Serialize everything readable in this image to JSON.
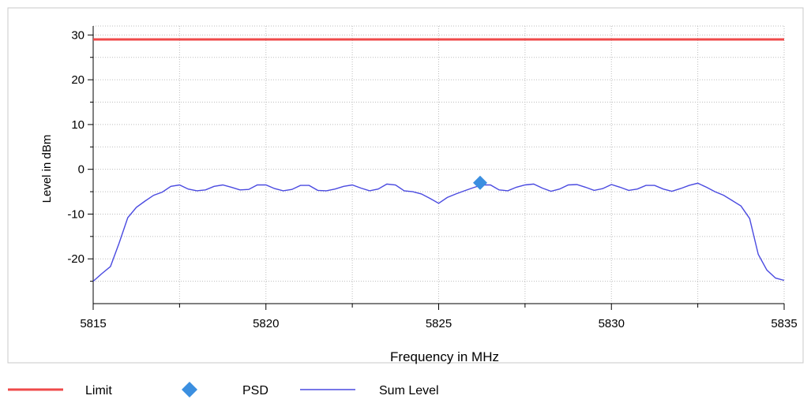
{
  "chart_data": {
    "type": "line",
    "title": "",
    "xlabel": "Frequency in MHz",
    "ylabel": "Level in dBm",
    "xlim": [
      5815,
      5835
    ],
    "ylim": [
      -30,
      32
    ],
    "x_ticks": [
      5815,
      5820,
      5825,
      5830,
      5835
    ],
    "y_ticks": [
      -20,
      -10,
      0,
      10,
      20,
      30
    ],
    "grid": true,
    "legend_position": "bottom",
    "colors": {
      "limit": "#ef4a4a",
      "psd": "#3b8fe0",
      "sum": "#4a4ae0"
    },
    "series": [
      {
        "name": "Limit",
        "kind": "line",
        "values": [
          [
            5815,
            29
          ],
          [
            5835,
            29
          ]
        ]
      },
      {
        "name": "PSD",
        "kind": "marker",
        "values": [
          [
            5826.2,
            -3.0
          ]
        ]
      },
      {
        "name": "Sum Level",
        "kind": "line",
        "values": [
          [
            5815.0,
            -25.0
          ],
          [
            5815.25,
            -23.3
          ],
          [
            5815.5,
            -21.7
          ],
          [
            5815.75,
            -16.5
          ],
          [
            5816.0,
            -10.8
          ],
          [
            5816.25,
            -8.5
          ],
          [
            5816.5,
            -7.1
          ],
          [
            5816.75,
            -5.8
          ],
          [
            5817.0,
            -5.1
          ],
          [
            5817.25,
            -3.8
          ],
          [
            5817.5,
            -3.5
          ],
          [
            5817.75,
            -4.4
          ],
          [
            5818.0,
            -4.8
          ],
          [
            5818.25,
            -4.6
          ],
          [
            5818.5,
            -3.8
          ],
          [
            5818.75,
            -3.5
          ],
          [
            5819.0,
            -4.0
          ],
          [
            5819.25,
            -4.6
          ],
          [
            5819.5,
            -4.5
          ],
          [
            5819.75,
            -3.5
          ],
          [
            5820.0,
            -3.5
          ],
          [
            5820.25,
            -4.3
          ],
          [
            5820.5,
            -4.8
          ],
          [
            5820.75,
            -4.5
          ],
          [
            5821.0,
            -3.6
          ],
          [
            5821.25,
            -3.6
          ],
          [
            5821.5,
            -4.7
          ],
          [
            5821.75,
            -4.8
          ],
          [
            5822.0,
            -4.4
          ],
          [
            5822.25,
            -3.8
          ],
          [
            5822.5,
            -3.5
          ],
          [
            5822.75,
            -4.2
          ],
          [
            5823.0,
            -4.8
          ],
          [
            5823.25,
            -4.4
          ],
          [
            5823.5,
            -3.3
          ],
          [
            5823.75,
            -3.5
          ],
          [
            5824.0,
            -4.8
          ],
          [
            5824.25,
            -5.0
          ],
          [
            5824.5,
            -5.5
          ],
          [
            5824.75,
            -6.5
          ],
          [
            5825.0,
            -7.6
          ],
          [
            5825.25,
            -6.3
          ],
          [
            5825.5,
            -5.5
          ],
          [
            5825.75,
            -4.8
          ],
          [
            5826.0,
            -4.1
          ],
          [
            5826.25,
            -3.5
          ],
          [
            5826.5,
            -3.5
          ],
          [
            5826.75,
            -4.6
          ],
          [
            5827.0,
            -4.8
          ],
          [
            5827.25,
            -4.0
          ],
          [
            5827.5,
            -3.5
          ],
          [
            5827.75,
            -3.3
          ],
          [
            5828.0,
            -4.2
          ],
          [
            5828.25,
            -4.9
          ],
          [
            5828.5,
            -4.4
          ],
          [
            5828.75,
            -3.5
          ],
          [
            5829.0,
            -3.4
          ],
          [
            5829.25,
            -4.0
          ],
          [
            5829.5,
            -4.7
          ],
          [
            5829.75,
            -4.3
          ],
          [
            5830.0,
            -3.4
          ],
          [
            5830.25,
            -4.0
          ],
          [
            5830.5,
            -4.7
          ],
          [
            5830.75,
            -4.4
          ],
          [
            5831.0,
            -3.6
          ],
          [
            5831.25,
            -3.6
          ],
          [
            5831.5,
            -4.4
          ],
          [
            5831.75,
            -4.9
          ],
          [
            5832.0,
            -4.3
          ],
          [
            5832.25,
            -3.6
          ],
          [
            5832.5,
            -3.1
          ],
          [
            5832.75,
            -4.0
          ],
          [
            5833.0,
            -5.0
          ],
          [
            5833.25,
            -5.8
          ],
          [
            5833.5,
            -7.0
          ],
          [
            5833.75,
            -8.2
          ],
          [
            5834.0,
            -11.0
          ],
          [
            5834.25,
            -19.0
          ],
          [
            5834.5,
            -22.5
          ],
          [
            5834.75,
            -24.3
          ],
          [
            5835.0,
            -24.8
          ]
        ]
      }
    ]
  }
}
